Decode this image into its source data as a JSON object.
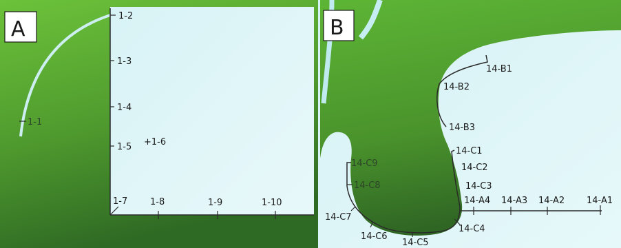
{
  "panel_a": {
    "letter": "A",
    "labels": {
      "l1_1": "1-1",
      "l1_2": "1-2",
      "l1_3": "1-3",
      "l1_4": "1-4",
      "l1_5": "1-5",
      "l1_6": "+1-6",
      "l1_7": "1-7",
      "l1_8": "1-8",
      "l1_9": "1-9",
      "l1_10": "1-10"
    }
  },
  "panel_b": {
    "letter": "B",
    "labels": {
      "b1": "14-B1",
      "b2": "14-B2",
      "b3": "14-B3",
      "c1": "14-C1",
      "c2": "14-C2",
      "c3": "14-C3",
      "c4": "14-C4",
      "c5": "14-C5",
      "c6": "14-C6",
      "c7": "14-C7",
      "c8": "14-C8",
      "c9": "14-C9",
      "a1": "14-A1",
      "a2": "14-A2",
      "a3": "14-A3",
      "a4": "14-A4"
    }
  },
  "colors": {
    "green_dark": "#3f7a2a",
    "green_light": "#6fc23a",
    "cyan_light": "#e2f6f8",
    "line": "#2b2b2b"
  }
}
